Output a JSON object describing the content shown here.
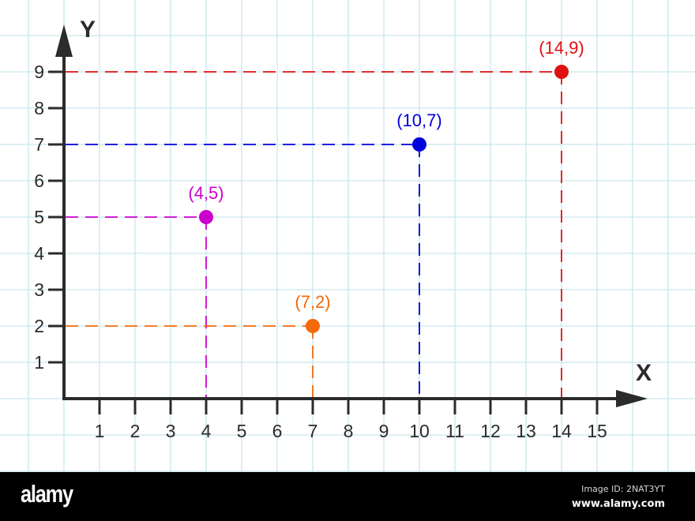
{
  "chart_data": {
    "type": "scatter",
    "title": "",
    "xlabel": "X",
    "ylabel": "Y",
    "xlim": [
      0,
      15
    ],
    "ylim": [
      0,
      9
    ],
    "x_ticks": [
      "1",
      "2",
      "3",
      "4",
      "5",
      "6",
      "7",
      "8",
      "9",
      "10",
      "11",
      "12",
      "13",
      "14",
      "15"
    ],
    "y_ticks": [
      "1",
      "2",
      "3",
      "4",
      "5",
      "6",
      "7",
      "8",
      "9"
    ],
    "grid": true,
    "legend": null,
    "points": [
      {
        "x": 4,
        "y": 5,
        "label": "(4,5)",
        "color": "#cc00cc"
      },
      {
        "x": 7,
        "y": 2,
        "label": "(7,2)",
        "color": "#f26a0a"
      },
      {
        "x": 10,
        "y": 7,
        "label": "(10,7)",
        "color": "#0000dd"
      },
      {
        "x": 14,
        "y": 9,
        "label": "(14,9)",
        "color": "#e01010"
      }
    ],
    "annotations": "Dashed projection lines from each point to the X and Y axes"
  },
  "footer": {
    "brand": "alamy",
    "image_id": "Image ID: 2NAT3YT",
    "site": "www.alamy.com"
  },
  "colors": {
    "grid": "#c9e6ee",
    "axis": "#2b2b2b",
    "footer_bg": "#000000"
  }
}
